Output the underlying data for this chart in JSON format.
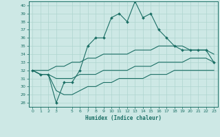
{
  "xlabel": "Humidex (Indice chaleur)",
  "xlim": [
    -0.5,
    23.5
  ],
  "ylim": [
    27.5,
    40.5
  ],
  "yticks": [
    28,
    29,
    30,
    31,
    32,
    33,
    34,
    35,
    36,
    37,
    38,
    39,
    40
  ],
  "xticks": [
    0,
    1,
    2,
    3,
    5,
    6,
    7,
    8,
    9,
    10,
    11,
    12,
    13,
    14,
    15,
    16,
    17,
    18,
    19,
    20,
    21,
    22,
    23
  ],
  "bg_color": "#cde8e5",
  "line_color": "#1a6e64",
  "grid_color": "#aed4cf",
  "main_line": [
    32,
    31.5,
    31.5,
    28,
    30.5,
    30.5,
    32,
    35,
    36,
    36,
    38.5,
    39,
    38,
    40.5,
    38.5,
    39,
    37,
    36,
    35,
    34.5,
    34.5,
    34.5,
    34.5,
    33
  ],
  "upper_line": [
    32,
    32,
    32,
    32.5,
    32.5,
    33,
    33,
    33.5,
    33.5,
    34,
    34,
    34,
    34,
    34.5,
    34.5,
    34.5,
    35,
    35,
    35,
    35,
    34.5,
    34.5,
    34.5,
    34
  ],
  "lower_line": [
    32,
    31.5,
    31.5,
    31,
    31,
    31,
    31.5,
    31.5,
    31.5,
    32,
    32,
    32,
    32,
    32.5,
    32.5,
    32.5,
    33,
    33,
    33,
    33,
    33.5,
    33.5,
    33.5,
    33
  ],
  "bottom_line": [
    32,
    31.5,
    31.5,
    29.5,
    29,
    29,
    29.5,
    30,
    30,
    30.5,
    30.5,
    31,
    31,
    31,
    31,
    31.5,
    31.5,
    31.5,
    32,
    32,
    32,
    32,
    32,
    32
  ],
  "marker_size": 2.0,
  "line_width": 0.8
}
